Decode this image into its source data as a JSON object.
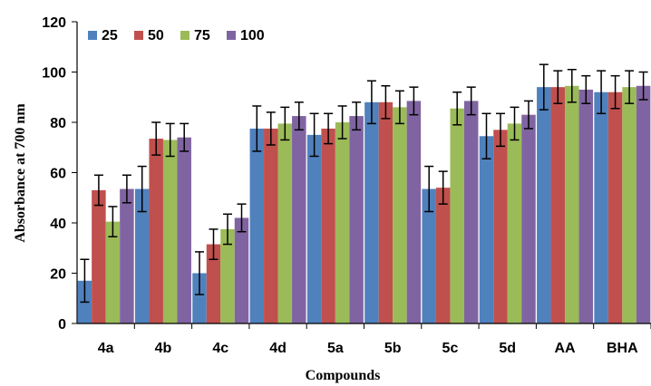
{
  "chart_data": {
    "type": "bar",
    "title": "",
    "xlabel": "Compounds",
    "ylabel": "Absorbance at 700 nm",
    "ylim": [
      0,
      120
    ],
    "yticks": [
      0,
      20,
      40,
      60,
      80,
      100,
      120
    ],
    "grid": false,
    "legend_position": "top-left",
    "categories": [
      "4a",
      "4b",
      "4c",
      "4d",
      "5a",
      "5b",
      "5c",
      "5d",
      "AA",
      "BHA"
    ],
    "series": [
      {
        "name": "25",
        "color": "#4f81bd",
        "values": [
          17,
          53.5,
          20,
          77.5,
          75,
          88,
          53.5,
          74.5,
          94,
          92
        ],
        "errors": [
          8.5,
          9,
          8.5,
          9,
          8.5,
          8.5,
          9,
          9,
          9,
          8.5
        ]
      },
      {
        "name": "50",
        "color": "#c0504d",
        "values": [
          53,
          73.5,
          31.5,
          77.5,
          77.5,
          88,
          54,
          77,
          94,
          92
        ],
        "errors": [
          6,
          6.5,
          6,
          6.5,
          6,
          6.5,
          6.5,
          6.5,
          6.5,
          6.5
        ]
      },
      {
        "name": "75",
        "color": "#9bbb59",
        "values": [
          40.5,
          73,
          37.5,
          79.5,
          80,
          86,
          85.5,
          79.5,
          94.5,
          94
        ],
        "errors": [
          6,
          6.5,
          6,
          6.5,
          6.5,
          6.5,
          6.5,
          6.5,
          6.5,
          6.5
        ]
      },
      {
        "name": "100",
        "color": "#8064a2",
        "values": [
          53.5,
          74,
          42,
          82.5,
          82.5,
          88.5,
          88.5,
          83,
          93,
          94.5
        ],
        "errors": [
          5.5,
          5.5,
          5.5,
          5.5,
          5.5,
          5.5,
          5.5,
          5.5,
          5.5,
          5.5
        ]
      }
    ]
  }
}
